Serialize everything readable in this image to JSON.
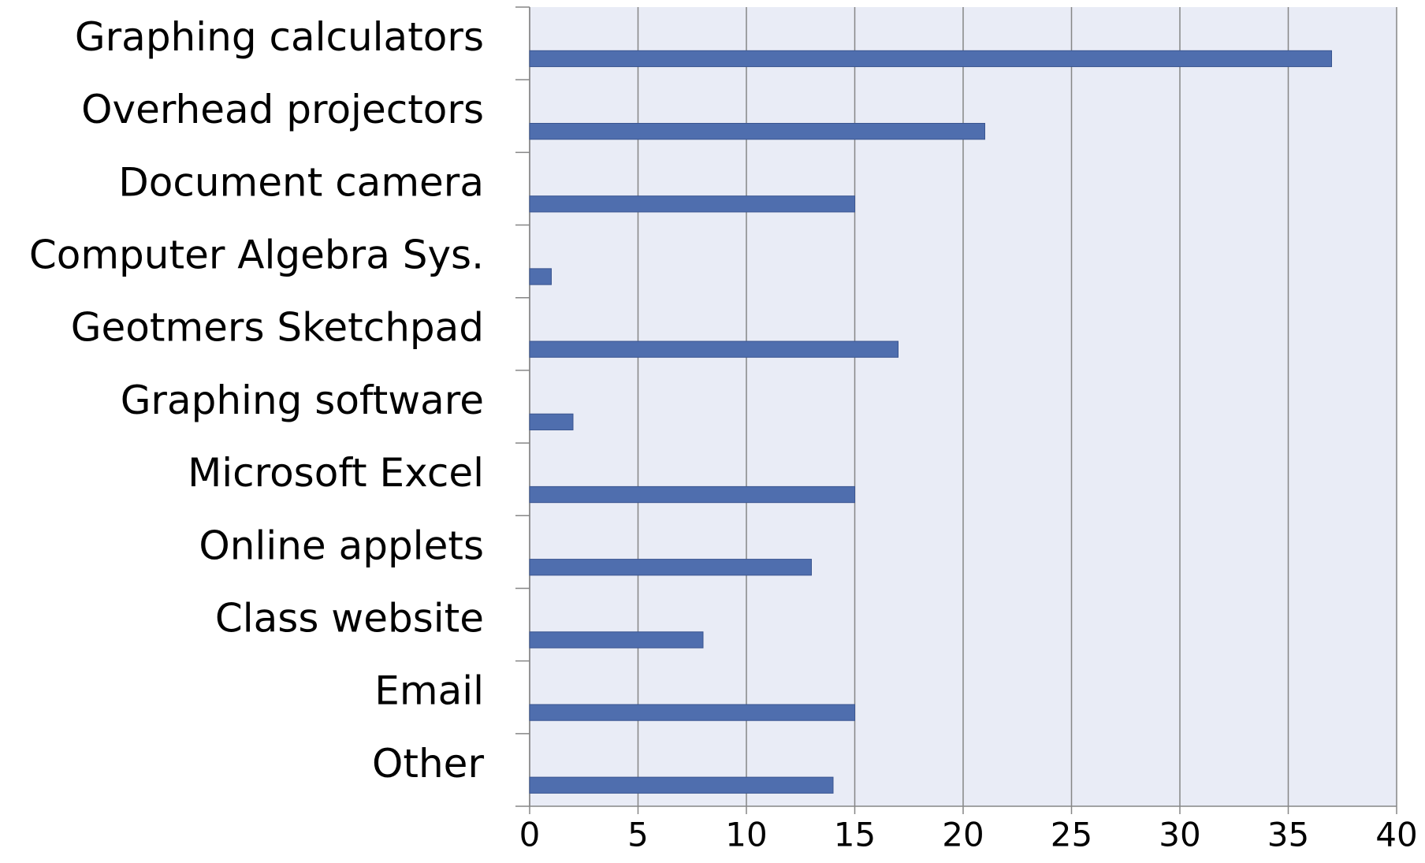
{
  "chart_data": {
    "type": "bar",
    "orientation": "horizontal",
    "categories": [
      "Graphing calculators",
      "Overhead projectors",
      "Document camera",
      "Computer Algebra Sys.",
      "Geotmers Sketchpad",
      "Graphing software",
      "Microsoft Excel",
      "Online applets",
      "Class website",
      "Email",
      "Other"
    ],
    "values": [
      37,
      21,
      15,
      1,
      17,
      2,
      15,
      13,
      8,
      15,
      14
    ],
    "color": "#4f6eae",
    "xlim": [
      0,
      40
    ],
    "xticks": [
      0,
      5,
      10,
      15,
      20,
      25,
      30,
      35,
      40
    ],
    "grid": true
  }
}
